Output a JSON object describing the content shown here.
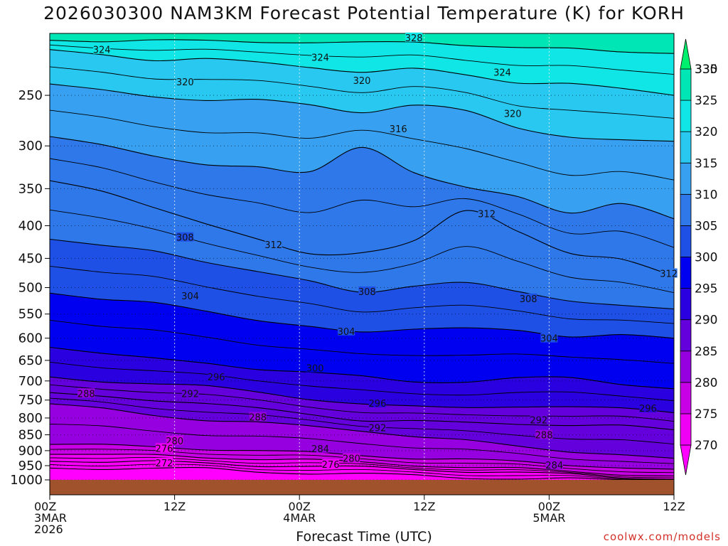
{
  "chart_data": {
    "type": "heatmap",
    "title": "2026030300 NAM3KM Forecast Potential Temperature (K) for KORH",
    "xlabel": "Forecast Time (UTC)",
    "ylabel": "",
    "credit": "coolwx.com/models",
    "x_ticks": [
      {
        "hour": 0,
        "lines": [
          "00Z",
          "3MAR",
          "2026"
        ]
      },
      {
        "hour": 12,
        "lines": [
          "12Z"
        ]
      },
      {
        "hour": 24,
        "lines": [
          "00Z",
          "4MAR"
        ]
      },
      {
        "hour": 36,
        "lines": [
          "12Z"
        ]
      },
      {
        "hour": 48,
        "lines": [
          "00Z",
          "5MAR"
        ]
      },
      {
        "hour": 60,
        "lines": [
          "12Z"
        ]
      }
    ],
    "xlim": [
      0,
      60
    ],
    "y_ticks": [
      250,
      300,
      350,
      400,
      450,
      500,
      550,
      600,
      650,
      700,
      750,
      800,
      850,
      900,
      950,
      1000
    ],
    "ylim_hpa": [
      1000,
      200
    ],
    "colorbar": {
      "levels": [
        270,
        275,
        280,
        285,
        290,
        295,
        300,
        305,
        310,
        315,
        320,
        325,
        330,
        335
      ],
      "colors": [
        "#ff00ff",
        "#f000f5",
        "#c800e6",
        "#9600e0",
        "#6400dc",
        "#2a00e0",
        "#0000f0",
        "#1e50e6",
        "#2e78ea",
        "#37a0f0",
        "#28c8f0",
        "#10e6e6",
        "#00e6b4",
        "#00f06e"
      ]
    },
    "isentrope_levels": [
      272,
      276,
      280,
      284,
      288,
      292,
      296,
      300,
      304,
      308,
      312,
      316,
      320,
      324,
      328
    ],
    "isentrope_pressure_hpa": {
      "272": [
        958,
        958,
        960,
        962,
        970,
        975,
        980,
        985,
        990,
        995,
        998,
        1000,
        1000
      ],
      "276": [
        935,
        936,
        938,
        942,
        948,
        952,
        957,
        962,
        968,
        975,
        982,
        990,
        998
      ],
      "280": [
        912,
        914,
        917,
        921,
        926,
        932,
        940,
        947,
        955,
        962,
        970,
        978,
        986
      ],
      "284": [
        880,
        884,
        888,
        893,
        900,
        908,
        915,
        923,
        930,
        938,
        946,
        955,
        962
      ],
      "288": [
        760,
        775,
        790,
        805,
        815,
        825,
        835,
        855,
        870,
        885,
        900,
        915,
        925
      ],
      "292": [
        730,
        740,
        748,
        760,
        775,
        788,
        805,
        810,
        815,
        815,
        820,
        825,
        835
      ],
      "296": [
        690,
        700,
        705,
        715,
        730,
        745,
        760,
        770,
        770,
        765,
        770,
        775,
        785
      ],
      "300": [
        620,
        630,
        645,
        660,
        670,
        675,
        690,
        705,
        700,
        690,
        695,
        710,
        720
      ],
      "304": [
        510,
        520,
        530,
        545,
        560,
        575,
        590,
        580,
        575,
        585,
        600,
        590,
        600
      ],
      "308": [
        420,
        430,
        440,
        455,
        470,
        490,
        510,
        495,
        490,
        510,
        525,
        530,
        540
      ],
      "312": [
        340,
        355,
        375,
        395,
        420,
        445,
        440,
        420,
        380,
        410,
        440,
        450,
        480
      ],
      "316": [
        290,
        300,
        310,
        320,
        325,
        330,
        300,
        330,
        350,
        360,
        380,
        370,
        390
      ],
      "320": [
        240,
        245,
        250,
        255,
        255,
        258,
        265,
        260,
        265,
        280,
        290,
        295,
        295
      ],
      "324": [
        212,
        215,
        220,
        220,
        222,
        225,
        230,
        228,
        232,
        238,
        240,
        245,
        250
      ],
      "328": [
        205,
        205,
        205,
        206,
        206,
        206,
        207,
        207,
        208,
        210,
        212,
        214,
        215
      ]
    },
    "contour_labels": [
      {
        "text": "324",
        "hour": 5,
        "hpa": 212
      },
      {
        "text": "324",
        "hour": 26,
        "hpa": 218
      },
      {
        "text": "328",
        "hour": 35,
        "hpa": 203
      },
      {
        "text": "324",
        "hour": 43.5,
        "hpa": 230
      },
      {
        "text": "320",
        "hour": 13,
        "hpa": 238
      },
      {
        "text": "320",
        "hour": 30,
        "hpa": 237
      },
      {
        "text": "320",
        "hour": 44.5,
        "hpa": 267
      },
      {
        "text": "316",
        "hour": 33.5,
        "hpa": 282
      },
      {
        "text": "312",
        "hour": 42,
        "hpa": 383
      },
      {
        "text": "312",
        "hour": 21.5,
        "hpa": 428
      },
      {
        "text": "312",
        "hour": 59.5,
        "hpa": 475
      },
      {
        "text": "308",
        "hour": 13,
        "hpa": 417
      },
      {
        "text": "308",
        "hour": 30.5,
        "hpa": 507
      },
      {
        "text": "308",
        "hour": 46,
        "hpa": 520
      },
      {
        "text": "304",
        "hour": 13.5,
        "hpa": 515
      },
      {
        "text": "304",
        "hour": 28.5,
        "hpa": 585
      },
      {
        "text": "304",
        "hour": 48,
        "hpa": 600
      },
      {
        "text": "300",
        "hour": 25.5,
        "hpa": 668
      },
      {
        "text": "296",
        "hour": 16,
        "hpa": 690
      },
      {
        "text": "296",
        "hour": 31.5,
        "hpa": 758
      },
      {
        "text": "296",
        "hour": 57.5,
        "hpa": 772
      },
      {
        "text": "292",
        "hour": 13.5,
        "hpa": 732
      },
      {
        "text": "292",
        "hour": 31.5,
        "hpa": 828
      },
      {
        "text": "292",
        "hour": 47,
        "hpa": 805
      },
      {
        "text": "288",
        "hour": 3.5,
        "hpa": 732
      },
      {
        "text": "288",
        "hour": 20,
        "hpa": 797
      },
      {
        "text": "288",
        "hour": 47.5,
        "hpa": 850
      },
      {
        "text": "284",
        "hour": 26,
        "hpa": 893
      },
      {
        "text": "284",
        "hour": 48.5,
        "hpa": 948
      },
      {
        "text": "280",
        "hour": 12,
        "hpa": 868
      },
      {
        "text": "280",
        "hour": 29,
        "hpa": 925
      },
      {
        "text": "276",
        "hour": 11,
        "hpa": 892
      },
      {
        "text": "276",
        "hour": 27,
        "hpa": 945
      },
      {
        "text": "272",
        "hour": 11,
        "hpa": 940
      }
    ]
  }
}
